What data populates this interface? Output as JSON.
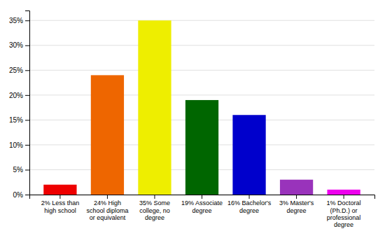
{
  "chart_data": {
    "type": "bar",
    "categories": [
      "2% Less than\nhigh school",
      "24% High\nschool diploma\nor equivalent",
      "35% Some\ncollege, no\ndegree",
      "19% Associate\ndegree",
      "16% Bachelor's\ndegree",
      "3% Master's\ndegree",
      "1% Doctoral\n(Ph.D.) or\nprofessional\ndegree"
    ],
    "values": [
      2,
      24,
      35,
      19,
      16,
      3,
      1
    ],
    "colors": [
      "#ee0000",
      "#ee6600",
      "#eeee00",
      "#006600",
      "#0000cc",
      "#9933bb",
      "#ee00ee"
    ],
    "ylim": [
      0,
      37
    ],
    "yticks": [
      {
        "value": 0,
        "label": "0%"
      },
      {
        "value": 5,
        "label": "5%"
      },
      {
        "value": 10,
        "label": "10%"
      },
      {
        "value": 15,
        "label": "15%"
      },
      {
        "value": 20,
        "label": "20%"
      },
      {
        "value": 25,
        "label": "25%"
      },
      {
        "value": 30,
        "label": "30%"
      },
      {
        "value": 35,
        "label": "35%"
      }
    ],
    "grid": true
  }
}
